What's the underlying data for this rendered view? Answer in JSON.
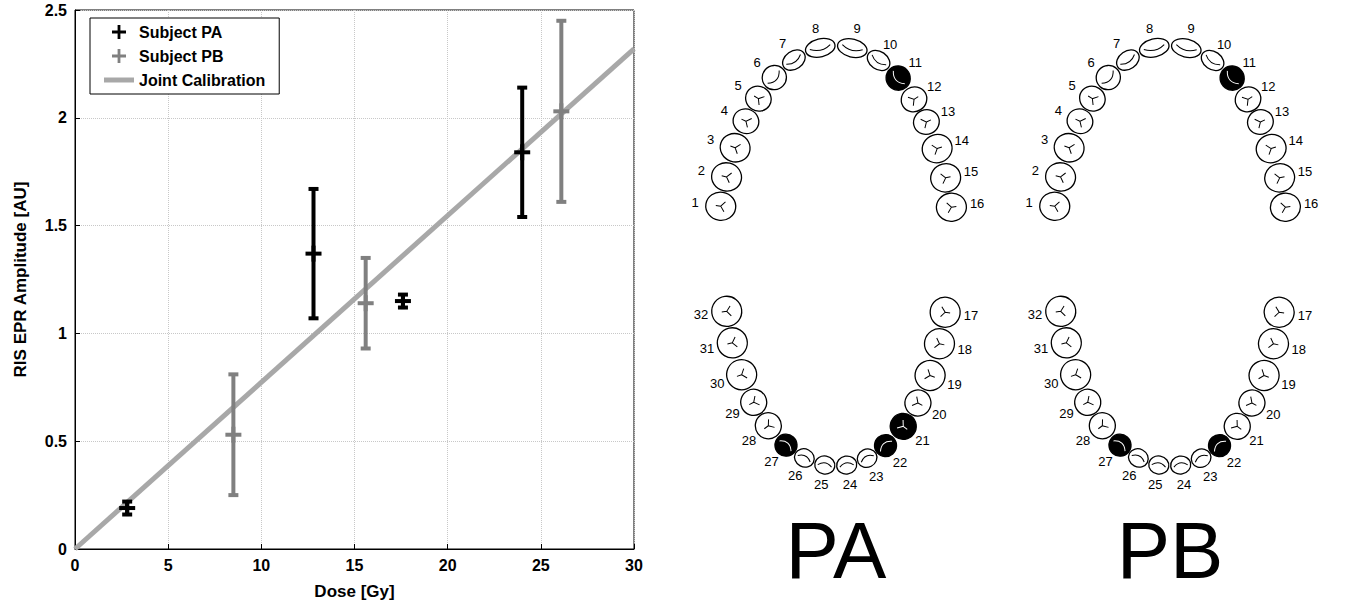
{
  "chart_data": {
    "type": "scatter",
    "x_label": "Dose [Gy]",
    "y_label": "RIS EPR Amplitude [AU]",
    "xlim": [
      0,
      30
    ],
    "xticks": [
      0,
      5,
      10,
      15,
      20,
      25,
      30
    ],
    "ylim": [
      0,
      2.5
    ],
    "yticks": [
      0,
      0.5,
      1,
      1.5,
      2,
      2.5
    ],
    "grid": true,
    "legend": "upper left",
    "series": [
      {
        "name": "Subject PA",
        "type": "scatter",
        "color": "#000000",
        "marker": "cross",
        "x": [
          2.8,
          12.8,
          17.6,
          24.0
        ],
        "values": [
          0.19,
          1.37,
          1.15,
          1.84
        ],
        "errors": [
          0.03,
          0.3,
          0.03,
          0.3
        ]
      },
      {
        "name": "Subject PB",
        "type": "scatter",
        "color": "#808080",
        "marker": "cross",
        "x": [
          8.5,
          15.6,
          26.1
        ],
        "values": [
          0.53,
          1.14,
          2.03
        ],
        "errors": [
          0.28,
          0.21,
          0.42
        ]
      },
      {
        "name": "Joint Calibration",
        "type": "line",
        "color": "#a8a8a8",
        "line_style": "solid",
        "x": [
          0,
          30
        ],
        "values": [
          0,
          2.32
        ]
      }
    ]
  },
  "diagrams": {
    "teeth": [
      1,
      2,
      3,
      4,
      5,
      6,
      7,
      8,
      9,
      10,
      11,
      12,
      13,
      14,
      15,
      16,
      17,
      18,
      19,
      20,
      21,
      22,
      23,
      24,
      25,
      26,
      27,
      28,
      29,
      30,
      31,
      32
    ],
    "panels": [
      {
        "label": "PA",
        "filled": [
          11,
          21,
          22,
          27
        ]
      },
      {
        "label": "PB",
        "filled": [
          11,
          22,
          27
        ]
      }
    ]
  }
}
